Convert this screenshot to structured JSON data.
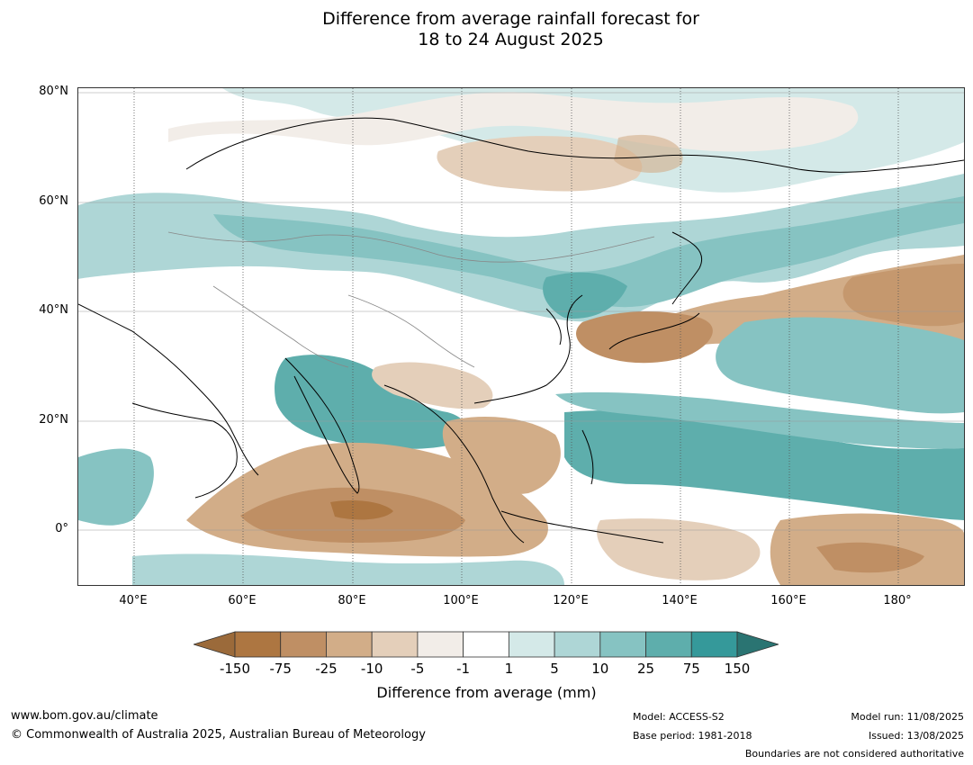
{
  "title": {
    "line1": "Difference from average rainfall forecast for",
    "line2": "18 to 24 August 2025"
  },
  "map": {
    "lat_labels": [
      "80°N",
      "60°N",
      "40°N",
      "20°N",
      "0°"
    ],
    "lon_labels": [
      "40°E",
      "60°E",
      "80°E",
      "100°E",
      "120°E",
      "140°E",
      "160°E",
      "180°"
    ],
    "extent": {
      "lon_min": 30,
      "lon_max": 192,
      "lat_min": -10,
      "lat_max": 81
    },
    "gridlines": true
  },
  "colorbar": {
    "title": "Difference from average (mm)",
    "ticks": [
      "-150",
      "-75",
      "-25",
      "-10",
      "-5",
      "-1",
      "1",
      "5",
      "10",
      "25",
      "75",
      "150"
    ],
    "colors": [
      "#9b6a3a",
      "#ad7641",
      "#bf8f64",
      "#d2ad88",
      "#e4cfba",
      "#f2ede8",
      "#ffffff",
      "#d4e9e8",
      "#aed6d6",
      "#86c3c2",
      "#5eaeac",
      "#35999a",
      "#2a7472"
    ]
  },
  "footer": {
    "website": "www.bom.gov.au/climate",
    "copyright": "© Commonwealth of Australia 2025, Australian Bureau of Meteorology",
    "model": "Model: ACCESS-S2",
    "base_period": "Base period: 1981-2018",
    "model_run": "Model run: 11/08/2025",
    "issued": "Issued: 13/08/2025",
    "disclaimer": "Boundaries are not considered authoritative"
  }
}
